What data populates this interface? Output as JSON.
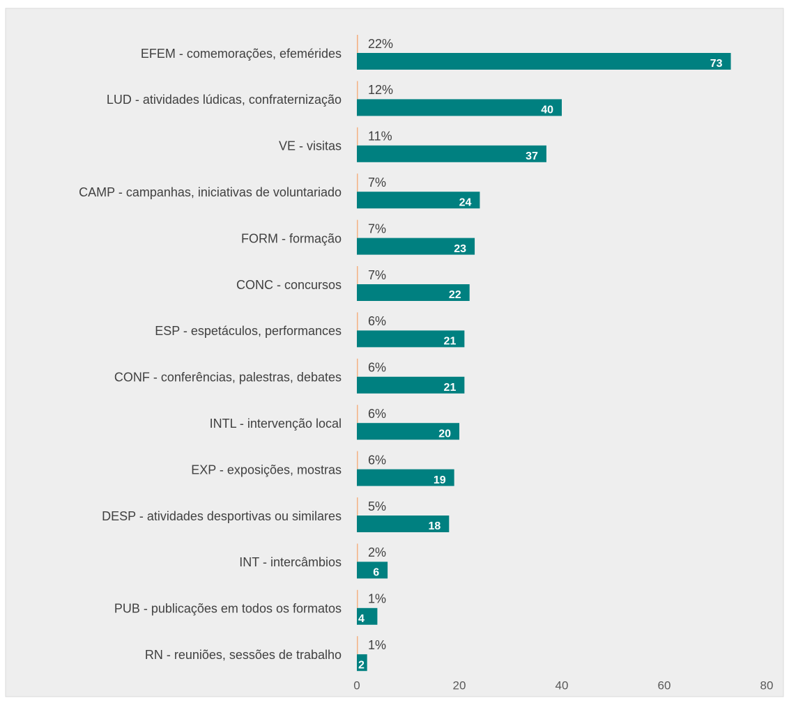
{
  "chart_data": {
    "type": "bar",
    "orientation": "horizontal",
    "categories": [
      "EFEM - comemorações, efemérides",
      "LUD - atividades lúdicas, confraternização",
      "VE - visitas",
      "CAMP - campanhas, iniciativas de voluntariado",
      "FORM - formação",
      "CONC - concursos",
      "ESP - espetáculos, performances",
      "CONF - conferências, palestras, debates",
      "INTL - intervenção local",
      "EXP - exposições, mostras",
      "DESP - atividades desportivas ou similares",
      "INT - intercâmbios",
      "PUB - publicações em todos os formatos",
      "RN - reuniões, sessões de trabalho"
    ],
    "series": [
      {
        "color": "#f4b183",
        "values": [
          0.22,
          0.12,
          0.11,
          0.07,
          0.07,
          0.07,
          0.06,
          0.06,
          0.06,
          0.06,
          0.05,
          0.02,
          0.01,
          0.01
        ],
        "value_labels": [
          "22%",
          "12%",
          "11%",
          "7%",
          "7%",
          "7%",
          "6%",
          "6%",
          "6%",
          "6%",
          "5%",
          "2%",
          "1%",
          "1%"
        ]
      },
      {
        "color": "#008080",
        "values": [
          73,
          40,
          37,
          24,
          23,
          22,
          21,
          21,
          20,
          19,
          18,
          6,
          4,
          2
        ]
      }
    ],
    "xlim": [
      0,
      80
    ],
    "xticks": [
      0,
      20,
      40,
      60,
      80
    ],
    "grid": false
  }
}
